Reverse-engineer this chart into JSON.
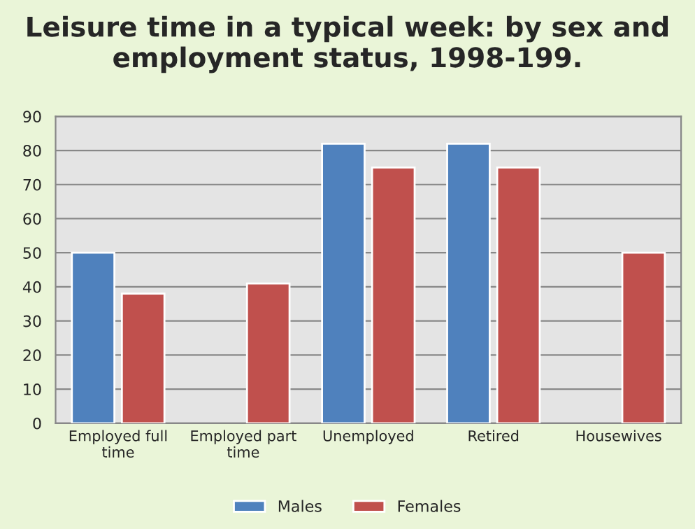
{
  "chart_data": {
    "type": "bar",
    "title": "Leisure time in a typical week: by sex and employment status, 1998-199.",
    "categories": [
      "Employed full time",
      "Employed part time",
      "Unemployed",
      "Retired",
      "Housewives"
    ],
    "series": [
      {
        "name": "Males",
        "color": "#4f81bd",
        "values": [
          50,
          null,
          82,
          82,
          null
        ]
      },
      {
        "name": "Females",
        "color": "#c0504d",
        "values": [
          38,
          41,
          75,
          75,
          50
        ]
      }
    ],
    "ylim": [
      0,
      90
    ],
    "yticks": [
      0,
      10,
      20,
      30,
      40,
      50,
      60,
      70,
      80,
      90
    ],
    "grid": "y",
    "legend": "bottom"
  }
}
